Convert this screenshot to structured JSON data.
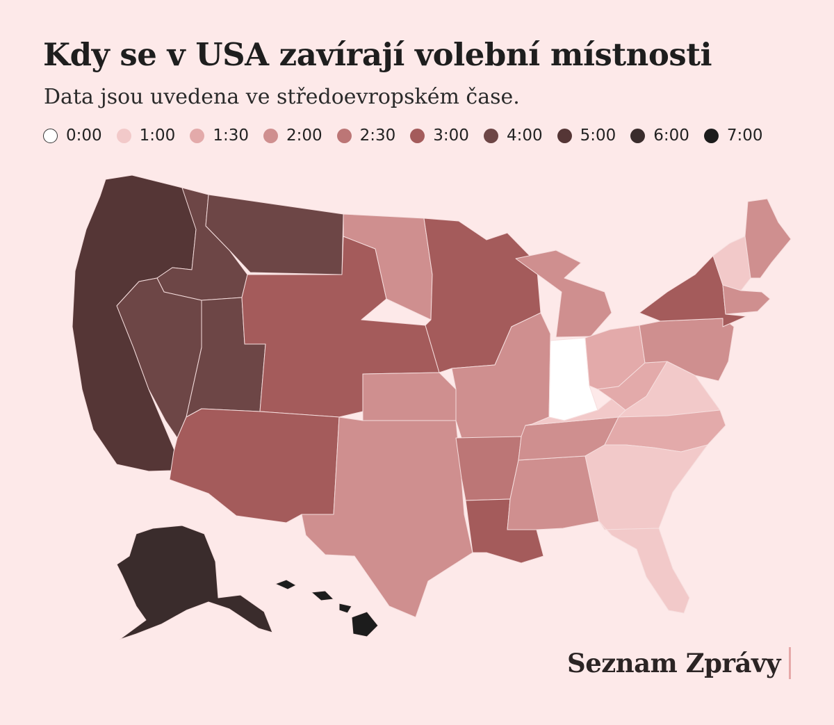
{
  "title": "Kdy se v USA zavírají volební místnosti",
  "subtitle": "Data jsou uvedena ve středoevropském čase.",
  "legend": [
    {
      "label": "0:00",
      "color": "#ffffff"
    },
    {
      "label": "1:00",
      "color": "#f2c9c9"
    },
    {
      "label": "1:30",
      "color": "#e3aaaa"
    },
    {
      "label": "2:00",
      "color": "#cf8f8f"
    },
    {
      "label": "2:30",
      "color": "#bc7676"
    },
    {
      "label": "3:00",
      "color": "#a45b5b"
    },
    {
      "label": "4:00",
      "color": "#6d4646"
    },
    {
      "label": "5:00",
      "color": "#553636"
    },
    {
      "label": "6:00",
      "color": "#3a2c2c"
    },
    {
      "label": "7:00",
      "color": "#1c1c1c"
    }
  ],
  "brand": "Seznam Zprávy",
  "regions": [
    {
      "id": "wa-or-ca",
      "time": "5:00"
    },
    {
      "id": "idaho",
      "time": "4:00"
    },
    {
      "id": "nevada",
      "time": "4:00"
    },
    {
      "id": "montana",
      "time": "4:00"
    },
    {
      "id": "utah",
      "time": "4:00"
    },
    {
      "id": "wyoming-colorado-nebraska-south-dakota",
      "time": "3:00"
    },
    {
      "id": "arizona-new-mexico",
      "time": "3:00"
    },
    {
      "id": "north-dakota",
      "time": "2:00"
    },
    {
      "id": "kansas",
      "time": "2:00"
    },
    {
      "id": "oklahoma-texas",
      "time": "2:00"
    },
    {
      "id": "minnesota-iowa-wisconsin",
      "time": "3:00"
    },
    {
      "id": "missouri-illinois",
      "time": "2:00"
    },
    {
      "id": "arkansas",
      "time": "2:30"
    },
    {
      "id": "louisiana",
      "time": "3:00"
    },
    {
      "id": "mississippi-alabama",
      "time": "2:00"
    },
    {
      "id": "tennessee",
      "time": "2:00"
    },
    {
      "id": "michigan",
      "time": "2:00"
    },
    {
      "id": "indiana",
      "time": "0:00"
    },
    {
      "id": "kentucky",
      "time": "1:00"
    },
    {
      "id": "ohio",
      "time": "1:30"
    },
    {
      "id": "west-virginia",
      "time": "1:30"
    },
    {
      "id": "virginia",
      "time": "1:00"
    },
    {
      "id": "north-carolina",
      "time": "1:30"
    },
    {
      "id": "georgia-south-carolina",
      "time": "1:00"
    },
    {
      "id": "florida",
      "time": "1:00"
    },
    {
      "id": "pennsylvania-new-jersey-maryland",
      "time": "2:00"
    },
    {
      "id": "new-york",
      "time": "3:00"
    },
    {
      "id": "vermont-new-hampshire",
      "time": "1:00"
    },
    {
      "id": "new-england-south",
      "time": "2:00"
    },
    {
      "id": "maine",
      "time": "2:00"
    },
    {
      "id": "alaska",
      "time": "6:00"
    },
    {
      "id": "hawaii",
      "time": "7:00"
    }
  ]
}
